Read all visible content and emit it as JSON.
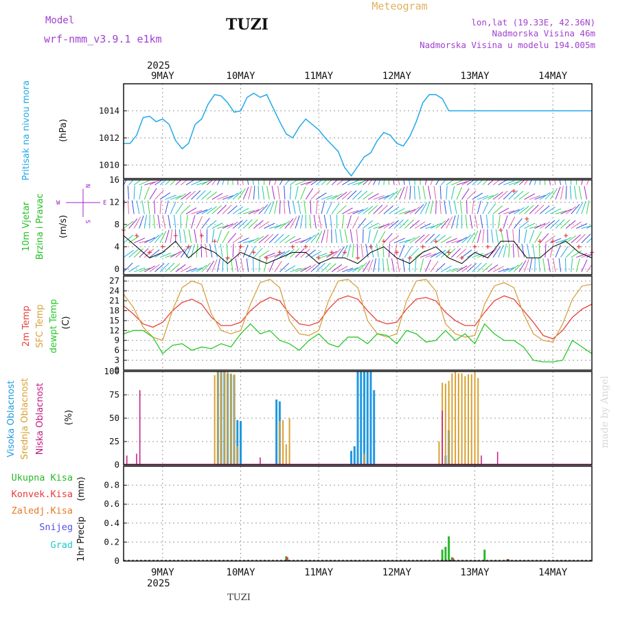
{
  "header": {
    "model_label": "Model",
    "model_name": "wrf-nmm_v3.9.1 e1km",
    "station": "TUZI",
    "title": "Meteogram",
    "lonlat": "lon,lat (19.33E, 42.36N)",
    "elevation": "Nadmorska Visina 46m",
    "model_elevation": "Nadmorska Visina u modelu 194.005m"
  },
  "footer": {
    "station": "TUZI",
    "credit": "made by Angel"
  },
  "time_axis": {
    "year": "2025",
    "days": [
      "9MAY",
      "10MAY",
      "11MAY",
      "12MAY",
      "13MAY",
      "14MAY"
    ],
    "start_hour": 0,
    "end_hour": 144
  },
  "colors": {
    "pressure": "#20a8e8",
    "temp2m": "#e8403c",
    "sfc_temp": "#d8a040",
    "dewpt": "#28c828",
    "cloud_high": "#2098e0",
    "cloud_mid": "#d8a030",
    "cloud_low": "#c01880",
    "precip_total": "#28b828",
    "precip_conv": "#e83838",
    "precip_frozen": "#e87820",
    "precip_snow": "#5050e0",
    "precip_hail": "#20c8c8",
    "wind_label": "#20c020",
    "wind_dir_label": "#a020d0",
    "gust": "#e83838",
    "wind_speed_line": "#000000"
  },
  "chart_data": [
    {
      "type": "line",
      "id": "pressure",
      "ylabel": "Pritisak na nivou mora",
      "unit": "(hPa)",
      "ylim": [
        1009,
        1016
      ],
      "yticks": [
        1010,
        1012,
        1014
      ],
      "grid": true,
      "series": [
        {
          "x": [
            0,
            2,
            4,
            6,
            8,
            10,
            12,
            14,
            16,
            18,
            20,
            22,
            24,
            26,
            28,
            30,
            32,
            34,
            36,
            38,
            40,
            42,
            44,
            46,
            48,
            50,
            52,
            54,
            56,
            58,
            60,
            62,
            64,
            66,
            68,
            70,
            72,
            74,
            76,
            78,
            80,
            82,
            84,
            86,
            88,
            90,
            92,
            94,
            96,
            98,
            100,
            102,
            104,
            106,
            108,
            110,
            112,
            114,
            116,
            118,
            120,
            122,
            124,
            126,
            128,
            130,
            132,
            134,
            136,
            138,
            140,
            142,
            144
          ],
          "values": [
            1011.6,
            1011.6,
            1012.2,
            1013.5,
            1013.6,
            1013.2,
            1013.4,
            1013.0,
            1011.8,
            1011.2,
            1011.6,
            1013.0,
            1013.4,
            1014.5,
            1015.2,
            1015.1,
            1014.6,
            1013.9,
            1014.0,
            1015.0,
            1015.3,
            1015.0,
            1015.2,
            1014.2,
            1013.2,
            1012.3,
            1012.0,
            1012.8,
            1013.4,
            1013.0,
            1012.6,
            1012.0,
            1011.5,
            1011.0,
            1009.8,
            1009.2,
            1009.9,
            1010.6,
            1010.9,
            1011.8,
            1012.4,
            1012.2,
            1011.6,
            1011.4,
            1012.1,
            1013.2,
            1014.6,
            1015.2,
            1015.2,
            1014.9,
            1014.0,
            1014.0,
            1014.0,
            1014.0,
            1014.0,
            1014.0,
            1014.0,
            1014.0,
            1014.0,
            1014.0,
            1014.0,
            1014.0,
            1014.0,
            1014.0,
            1014.0,
            1014.0,
            1014.0,
            1014.0,
            1014.0,
            1014.0,
            1014.0,
            1014.0,
            1014.0
          ]
        }
      ]
    },
    {
      "type": "line",
      "id": "wind",
      "ylabel_lines": [
        "10m Vjetar",
        "Brzina i Pravac"
      ],
      "unit": "(m/s)",
      "compass": {
        "w": "W",
        "e": "E",
        "n": "N",
        "s": "S"
      },
      "ylim": [
        -1,
        16
      ],
      "yticks": [
        0,
        4,
        8,
        12,
        16
      ],
      "grid": true,
      "series": [
        {
          "name": "speed",
          "x": [
            0,
            4,
            8,
            12,
            16,
            20,
            24,
            28,
            32,
            36,
            40,
            44,
            48,
            52,
            56,
            60,
            64,
            68,
            72,
            76,
            80,
            84,
            88,
            92,
            96,
            100,
            104,
            108,
            112,
            116,
            120,
            124,
            128,
            132,
            136,
            140,
            144
          ],
          "values": [
            6,
            4,
            2,
            3,
            5,
            2,
            4,
            3,
            1,
            3,
            2,
            1,
            2,
            3,
            3,
            1,
            2,
            2,
            1,
            3,
            4,
            2,
            1,
            3,
            4,
            2,
            1,
            3,
            2,
            5,
            5,
            2,
            2,
            4,
            5,
            3,
            2
          ]
        },
        {
          "name": "gust",
          "x": [
            0,
            4,
            8,
            12,
            16,
            20,
            24,
            28,
            32,
            36,
            40,
            44,
            48,
            52,
            56,
            60,
            64,
            68,
            72,
            76,
            80,
            84,
            88,
            92,
            96,
            100,
            104,
            108,
            112,
            116,
            120,
            124,
            128,
            132,
            136,
            140,
            144
          ],
          "values": [
            7,
            6,
            3,
            4,
            6,
            4,
            6,
            5,
            2,
            4,
            3,
            2,
            3,
            4,
            4,
            2,
            3,
            3,
            2,
            4,
            5,
            3,
            2,
            4,
            5,
            3,
            2,
            4,
            4,
            7,
            14,
            9,
            5,
            5,
            6,
            4,
            3
          ]
        }
      ]
    },
    {
      "type": "line",
      "id": "temperature",
      "ylabel_lines": [
        "2m Temp",
        "SFC Temp",
        "dewpt Temp"
      ],
      "unit": "(C)",
      "ylim": [
        0,
        28.5
      ],
      "yticks": [
        0,
        3,
        6,
        9,
        12,
        15,
        18,
        21,
        24,
        27
      ],
      "grid": true,
      "series": [
        {
          "name": "2m Temp",
          "x": [
            0,
            3,
            6,
            9,
            12,
            15,
            18,
            21,
            24,
            27,
            30,
            33,
            36,
            39,
            42,
            45,
            48,
            51,
            54,
            57,
            60,
            63,
            66,
            69,
            72,
            75,
            78,
            81,
            84,
            87,
            90,
            93,
            96,
            99,
            102,
            105,
            108,
            111,
            114,
            117,
            120,
            123,
            126,
            129,
            132,
            135,
            138,
            141,
            144
          ],
          "values": [
            19.5,
            17,
            14,
            13,
            14.5,
            18,
            20.5,
            21.5,
            20,
            16,
            13.5,
            13.5,
            14.5,
            18,
            20.5,
            22,
            21,
            17,
            14,
            13.5,
            14.5,
            18.5,
            21.5,
            22.5,
            21.5,
            18,
            15,
            14,
            14.5,
            18.5,
            21.5,
            22,
            21,
            17.5,
            15,
            13.5,
            13.5,
            17.5,
            21,
            22.5,
            21.5,
            18,
            14.5,
            10.5,
            9.5,
            12,
            16,
            18.5,
            20
          ]
        },
        {
          "name": "SFC Temp",
          "x": [
            0,
            3,
            6,
            9,
            12,
            15,
            18,
            21,
            24,
            27,
            30,
            33,
            36,
            39,
            42,
            45,
            48,
            51,
            54,
            57,
            60,
            63,
            66,
            69,
            72,
            75,
            78,
            81,
            84,
            87,
            90,
            93,
            96,
            99,
            102,
            105,
            108,
            111,
            114,
            117,
            120,
            123,
            126,
            129,
            132,
            135,
            138,
            141,
            144
          ],
          "values": [
            23,
            19,
            13,
            10,
            9,
            18,
            25,
            27,
            26,
            17,
            12,
            11,
            12,
            20,
            26.5,
            27.5,
            25,
            15,
            11,
            10.5,
            12,
            21,
            27,
            27.5,
            25,
            15,
            11,
            10,
            11,
            21,
            27,
            27.5,
            24,
            14,
            11,
            10,
            10.5,
            20,
            25.5,
            26.5,
            25,
            17,
            11,
            9,
            8.5,
            14,
            21.5,
            25.5,
            26
          ]
        },
        {
          "name": "dewpt Temp",
          "x": [
            0,
            3,
            6,
            9,
            12,
            15,
            18,
            21,
            24,
            27,
            30,
            33,
            36,
            39,
            42,
            45,
            48,
            51,
            54,
            57,
            60,
            63,
            66,
            69,
            72,
            75,
            78,
            81,
            84,
            87,
            90,
            93,
            96,
            99,
            102,
            105,
            108,
            111,
            114,
            117,
            120,
            123,
            126,
            129,
            132,
            135,
            138,
            141,
            144
          ],
          "values": [
            11,
            12,
            12,
            10,
            5,
            7.5,
            8,
            6,
            7,
            6.5,
            8,
            7,
            11,
            14,
            11,
            12,
            9,
            8,
            6,
            9,
            11,
            8,
            7,
            10,
            10,
            8,
            11,
            10.5,
            8,
            12,
            11,
            8.5,
            9,
            12,
            9,
            11,
            8,
            14,
            11,
            9,
            9,
            7,
            3,
            2.5,
            2.5,
            3,
            9,
            7,
            5
          ]
        }
      ]
    },
    {
      "type": "bar",
      "id": "clouds",
      "ylabel_lines": [
        "Visoka Oblacnost",
        "Srednja Oblacnost",
        "Niska Oblacnost"
      ],
      "unit": "(%)",
      "ylim": [
        0,
        100
      ],
      "yticks": [
        0,
        25,
        50,
        75,
        100
      ],
      "grid": true,
      "series": [
        {
          "name": "Visoka Oblacnost",
          "x": [
            29,
            30,
            31,
            32,
            33,
            34,
            35,
            36,
            47,
            48,
            70,
            71,
            72,
            73,
            74,
            75,
            76,
            77,
            99,
            100
          ],
          "values": [
            100,
            100,
            100,
            98,
            97,
            96,
            48,
            47,
            70,
            68,
            15,
            20,
            100,
            100,
            100,
            100,
            100,
            80,
            10,
            37
          ]
        },
        {
          "name": "Srednja Oblacnost",
          "x": [
            28,
            29,
            30,
            31,
            32,
            33,
            34,
            35,
            48,
            49,
            50,
            51,
            74,
            97,
            98,
            99,
            100,
            101,
            102,
            103,
            104,
            105,
            106,
            107,
            108,
            109
          ],
          "values": [
            96,
            100,
            100,
            100,
            100,
            98,
            97,
            20,
            47,
            48,
            22,
            50,
            12,
            25,
            88,
            87,
            90,
            98,
            100,
            98,
            98,
            95,
            97,
            97,
            100,
            93
          ]
        },
        {
          "name": "Niska Oblacnost",
          "x": [
            1,
            4,
            5,
            42,
            98,
            110,
            115
          ],
          "values": [
            10,
            12,
            80,
            8,
            58,
            10,
            14
          ]
        }
      ]
    },
    {
      "type": "bar",
      "id": "precip",
      "ylabel": "1hr Precip",
      "unit": "(mm)",
      "legend": [
        "Ukupna Kisa",
        "Konvek.Kisa",
        "Zaledj.Kisa",
        "Snijeg",
        "Grad"
      ],
      "ylim": [
        0,
        1
      ],
      "yticks": [
        0,
        0.2,
        0.4,
        0.6,
        0.8
      ],
      "grid": true,
      "series": [
        {
          "name": "Ukupna Kisa",
          "x": [
            50,
            98,
            99,
            100,
            101,
            111,
            118
          ],
          "values": [
            0.05,
            0.12,
            0.15,
            0.26,
            0.04,
            0.12,
            0.02
          ]
        },
        {
          "name": "Konvek.Kisa",
          "x": [
            50,
            101,
            118
          ],
          "values": [
            0.04,
            0.03,
            0.02
          ]
        }
      ]
    }
  ]
}
